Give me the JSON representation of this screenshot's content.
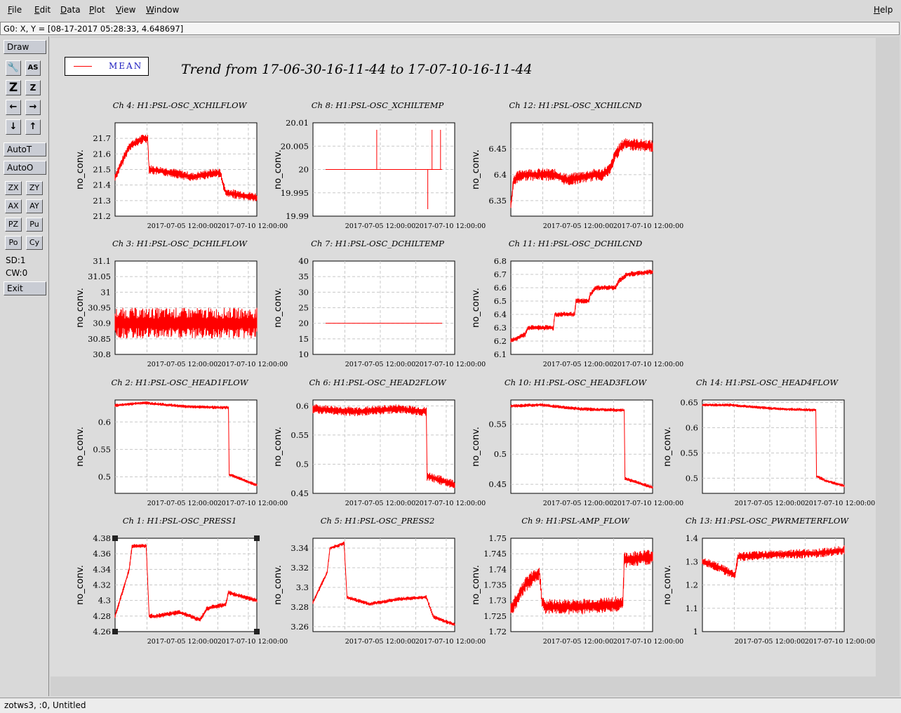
{
  "menubar": {
    "items": [
      "File",
      "Edit",
      "Data",
      "Plot",
      "View",
      "Window"
    ],
    "help": "Help"
  },
  "status": "G0: X, Y = [08-17-2017 05:28:33, 4.648697]",
  "toolbar": {
    "draw": "Draw",
    "icon_buttons": [
      "wrench-icon",
      "text-scale-icon",
      "zoom-z-large-icon",
      "zoom-z-small-icon",
      "arrow-left-icon",
      "arrow-right-icon",
      "arrow-down-icon",
      "arrow-up-icon"
    ],
    "icon_glyphs": [
      "🔧",
      "AS",
      "Z",
      "Z",
      "←",
      "→",
      "↓",
      "↑"
    ],
    "autot": "AutoT",
    "autoo": "AutoO",
    "small_buttons": [
      "ZX",
      "ZY",
      "AX",
      "AY",
      "PZ",
      "Pu",
      "Po",
      "Cy"
    ],
    "sd": "SD:1",
    "cw": "CW:0",
    "exit": "Exit"
  },
  "footer": "zotws3, :0, Untitled",
  "legend": {
    "label": "MEAN",
    "color": "#ff0000"
  },
  "title": "Trend from 17-06-30-16-11-44 to 17-07-10-16-11-44",
  "colors": {
    "trace": "#ff0000"
  },
  "chart_data": [
    {
      "title": "Ch 4: H1:PSL-OSC_XCHILFLOW",
      "ylabel": "no_conv.",
      "ylim": [
        21.2,
        21.8
      ],
      "yticks": [
        "21.7",
        "21.6",
        "21.5",
        "21.4",
        "21.3",
        "21.2"
      ],
      "yvals": [
        21.7,
        21.6,
        21.5,
        21.4,
        21.3,
        21.2
      ],
      "xticks": [
        "2017-07-05 12:00:00",
        "2017-07-10 12:00:00"
      ],
      "kind": "band",
      "noise": 0.03,
      "profile": [
        [
          0,
          21.45
        ],
        [
          0.05,
          21.55
        ],
        [
          0.1,
          21.65
        ],
        [
          0.2,
          21.7
        ],
        [
          0.23,
          21.7
        ],
        [
          0.24,
          21.5
        ],
        [
          0.4,
          21.48
        ],
        [
          0.55,
          21.45
        ],
        [
          0.65,
          21.47
        ],
        [
          0.74,
          21.48
        ],
        [
          0.78,
          21.35
        ],
        [
          1,
          21.32
        ]
      ]
    },
    {
      "title": "Ch 8: H1:PSL-OSC_XCHILTEMP",
      "ylabel": "no_conv.",
      "ylim": [
        19.99,
        20.01
      ],
      "yticks": [
        "20.01",
        "20.005",
        "20",
        "19.995",
        "19.99"
      ],
      "yvals": [
        20.01,
        20.005,
        20,
        19.995,
        19.99
      ],
      "xticks": [
        "2017-07-05 12:00:00",
        "2017-07-10 12:00:00"
      ],
      "kind": "flat",
      "value": 20,
      "spikes": [
        [
          0.45,
          20.0085
        ],
        [
          0.81,
          19.9915
        ],
        [
          0.84,
          20.0085
        ],
        [
          0.9,
          20.0085
        ]
      ]
    },
    {
      "title": "Ch 12: H1:PSL-OSC_XCHILCND",
      "ylabel": "no_conv.",
      "ylim": [
        6.32,
        6.5
      ],
      "yticks": [
        "6.45",
        "6.4",
        "6.35"
      ],
      "yvals": [
        6.45,
        6.4,
        6.35
      ],
      "xticks": [
        "2017-07-05 12:00:00",
        "2017-07-10 12:00:00"
      ],
      "kind": "band",
      "noise": 0.012,
      "profile": [
        [
          0,
          6.34
        ],
        [
          0.02,
          6.39
        ],
        [
          0.08,
          6.4
        ],
        [
          0.3,
          6.4
        ],
        [
          0.4,
          6.39
        ],
        [
          0.6,
          6.4
        ],
        [
          0.64,
          6.4
        ],
        [
          0.7,
          6.41
        ],
        [
          0.74,
          6.44
        ],
        [
          0.8,
          6.46
        ],
        [
          1,
          6.455
        ]
      ]
    },
    {
      "title": "Ch 3: H1:PSL-OSC_DCHILFLOW",
      "ylabel": "no_conv.",
      "ylim": [
        30.8,
        31.1
      ],
      "yticks": [
        "31.1",
        "31.05",
        "31",
        "30.95",
        "30.9",
        "30.85",
        "30.8"
      ],
      "yvals": [
        31.1,
        31.05,
        31,
        30.95,
        30.9,
        30.85,
        30.8
      ],
      "xticks": [
        "2017-07-05 12:00:00",
        "2017-07-10 12:00:00"
      ],
      "kind": "band",
      "noise": 0.05,
      "profile": [
        [
          0,
          30.9
        ],
        [
          1,
          30.9
        ]
      ]
    },
    {
      "title": "Ch 7: H1:PSL-OSC_DCHILTEMP",
      "ylabel": "no_conv.",
      "ylim": [
        10,
        40
      ],
      "yticks": [
        "40",
        "35",
        "30",
        "25",
        "20",
        "15",
        "10"
      ],
      "yvals": [
        40,
        35,
        30,
        25,
        20,
        15,
        10
      ],
      "xticks": [
        "2017-07-05 12:00:00",
        "2017-07-10 12:00:00"
      ],
      "kind": "flat",
      "value": 20,
      "spikes": []
    },
    {
      "title": "Ch 11: H1:PSL-OSC_DCHILCND",
      "ylabel": "no_conv.",
      "ylim": [
        6.1,
        6.8
      ],
      "yticks": [
        "6.8",
        "6.7",
        "6.6",
        "6.5",
        "6.4",
        "6.3",
        "6.2",
        "6.1"
      ],
      "yvals": [
        6.8,
        6.7,
        6.6,
        6.5,
        6.4,
        6.3,
        6.2,
        6.1
      ],
      "xticks": [
        "2017-07-05 12:00:00",
        "2017-07-10 12:00:00"
      ],
      "kind": "steps",
      "noise": 0.02,
      "profile": [
        [
          0,
          6.2
        ],
        [
          0.1,
          6.25
        ],
        [
          0.12,
          6.3
        ],
        [
          0.3,
          6.3
        ],
        [
          0.31,
          6.4
        ],
        [
          0.45,
          6.4
        ],
        [
          0.46,
          6.5
        ],
        [
          0.55,
          6.5
        ],
        [
          0.56,
          6.55
        ],
        [
          0.6,
          6.6
        ],
        [
          0.74,
          6.6
        ],
        [
          0.76,
          6.65
        ],
        [
          0.82,
          6.7
        ],
        [
          1,
          6.72
        ]
      ]
    },
    {
      "title": "Ch 2: H1:PSL-OSC_HEAD1FLOW",
      "ylabel": "no_conv.",
      "ylim": [
        0.47,
        0.64
      ],
      "yticks": [
        "0.6",
        "0.55",
        "0.5"
      ],
      "yvals": [
        0.6,
        0.55,
        0.5
      ],
      "xticks": [
        "2017-07-05 12:00:00",
        "2017-07-10 12:00:00"
      ],
      "kind": "band",
      "noise": 0.003,
      "profile": [
        [
          0,
          0.63
        ],
        [
          0.2,
          0.635
        ],
        [
          0.5,
          0.628
        ],
        [
          0.8,
          0.626
        ],
        [
          0.8,
          0.505
        ],
        [
          0.85,
          0.5
        ],
        [
          1,
          0.485
        ]
      ]
    },
    {
      "title": "Ch 6: H1:PSL-OSC_HEAD2FLOW",
      "ylabel": "no_conv.",
      "ylim": [
        0.45,
        0.61
      ],
      "yticks": [
        "0.6",
        "0.55",
        "0.5",
        "0.45"
      ],
      "yvals": [
        0.6,
        0.55,
        0.5,
        0.45
      ],
      "xticks": [
        "2017-07-05 12:00:00",
        "2017-07-10 12:00:00"
      ],
      "kind": "band",
      "noise": 0.008,
      "profile": [
        [
          0,
          0.595
        ],
        [
          0.3,
          0.59
        ],
        [
          0.6,
          0.595
        ],
        [
          0.8,
          0.59
        ],
        [
          0.8,
          0.48
        ],
        [
          1,
          0.465
        ]
      ]
    },
    {
      "title": "Ch 10: H1:PSL-OSC_HEAD3FLOW",
      "ylabel": "no_conv.",
      "ylim": [
        0.435,
        0.59
      ],
      "yticks": [
        "0.55",
        "0.5",
        "0.45"
      ],
      "yvals": [
        0.55,
        0.5,
        0.45
      ],
      "xticks": [
        "2017-07-05 12:00:00",
        "2017-07-10 12:00:00"
      ],
      "kind": "band",
      "noise": 0.003,
      "profile": [
        [
          0,
          0.58
        ],
        [
          0.2,
          0.582
        ],
        [
          0.5,
          0.575
        ],
        [
          0.8,
          0.573
        ],
        [
          0.8,
          0.46
        ],
        [
          1,
          0.445
        ]
      ]
    },
    {
      "title": "Ch 14: H1:PSL-OSC_HEAD4FLOW",
      "ylabel": "no_conv.",
      "ylim": [
        0.47,
        0.655
      ],
      "yticks": [
        "0.65",
        "0.6",
        "0.55",
        "0.5"
      ],
      "yvals": [
        0.65,
        0.6,
        0.55,
        0.5
      ],
      "xticks": [
        "2017-07-05 12:00:00",
        "2017-07-10 12:00:00"
      ],
      "kind": "band",
      "noise": 0.003,
      "profile": [
        [
          0,
          0.645
        ],
        [
          0.2,
          0.645
        ],
        [
          0.5,
          0.638
        ],
        [
          0.8,
          0.635
        ],
        [
          0.8,
          0.505
        ],
        [
          0.87,
          0.495
        ],
        [
          1,
          0.485
        ]
      ]
    },
    {
      "title": "Ch 1: H1:PSL-OSC_PRESS1",
      "ylabel": "no_conv.",
      "ylim": [
        4.26,
        4.38
      ],
      "yticks": [
        "4.38",
        "4.36",
        "4.34",
        "4.32",
        "4.3",
        "4.28",
        "4.26"
      ],
      "yvals": [
        4.38,
        4.36,
        4.34,
        4.32,
        4.3,
        4.28,
        4.26
      ],
      "xticks": [
        "2017-07-05 12:00:00",
        "2017-07-10 12:00:00"
      ],
      "kind": "band",
      "noise": 0.003,
      "profile": [
        [
          0,
          4.28
        ],
        [
          0.1,
          4.34
        ],
        [
          0.12,
          4.37
        ],
        [
          0.22,
          4.37
        ],
        [
          0.24,
          4.28
        ],
        [
          0.3,
          4.28
        ],
        [
          0.45,
          4.285
        ],
        [
          0.6,
          4.275
        ],
        [
          0.65,
          4.29
        ],
        [
          0.78,
          4.295
        ],
        [
          0.8,
          4.31
        ],
        [
          1,
          4.3
        ]
      ]
    },
    {
      "title": "Ch 5: H1:PSL-OSC_PRESS2",
      "ylabel": "no_conv.",
      "ylim": [
        3.255,
        3.35
      ],
      "yticks": [
        "3.34",
        "3.32",
        "3.3",
        "3.28",
        "3.26"
      ],
      "yvals": [
        3.34,
        3.32,
        3.3,
        3.28,
        3.26
      ],
      "xticks": [
        "2017-07-05 12:00:00",
        "2017-07-10 12:00:00"
      ],
      "kind": "band",
      "noise": 0.002,
      "profile": [
        [
          0,
          3.285
        ],
        [
          0.1,
          3.315
        ],
        [
          0.12,
          3.34
        ],
        [
          0.22,
          3.345
        ],
        [
          0.24,
          3.29
        ],
        [
          0.4,
          3.283
        ],
        [
          0.6,
          3.288
        ],
        [
          0.8,
          3.29
        ],
        [
          0.85,
          3.27
        ],
        [
          1,
          3.262
        ]
      ]
    },
    {
      "title": "Ch 9: H1:PSL-AMP_FLOW",
      "ylabel": "no_conv.",
      "ylim": [
        1.72,
        1.75
      ],
      "yticks": [
        "1.75",
        "1.745",
        "1.74",
        "1.735",
        "1.73",
        "1.725",
        "1.72"
      ],
      "yvals": [
        1.75,
        1.745,
        1.74,
        1.735,
        1.73,
        1.725,
        1.72
      ],
      "xticks": [
        "2017-07-05 12:00:00",
        "2017-07-10 12:00:00"
      ],
      "kind": "band",
      "noise": 0.0025,
      "profile": [
        [
          0,
          1.727
        ],
        [
          0.1,
          1.735
        ],
        [
          0.2,
          1.739
        ],
        [
          0.22,
          1.73
        ],
        [
          0.24,
          1.728
        ],
        [
          0.5,
          1.728
        ],
        [
          0.79,
          1.729
        ],
        [
          0.8,
          1.743
        ],
        [
          1,
          1.744
        ]
      ]
    },
    {
      "title": "Ch 13: H1:PSL-OSC_PWRMETERFLOW",
      "ylabel": "no_conv.",
      "ylim": [
        1,
        1.4
      ],
      "yticks": [
        "1.4",
        "1.3",
        "1.2",
        "1.1",
        "1"
      ],
      "yvals": [
        1.4,
        1.3,
        1.2,
        1.1,
        1
      ],
      "xticks": [
        "2017-07-05 12:00:00",
        "2017-07-10 12:00:00"
      ],
      "kind": "band",
      "noise": 0.02,
      "profile": [
        [
          0,
          1.3
        ],
        [
          0.1,
          1.28
        ],
        [
          0.2,
          1.25
        ],
        [
          0.23,
          1.24
        ],
        [
          0.25,
          1.32
        ],
        [
          0.5,
          1.33
        ],
        [
          0.8,
          1.335
        ],
        [
          1,
          1.35
        ]
      ]
    }
  ]
}
